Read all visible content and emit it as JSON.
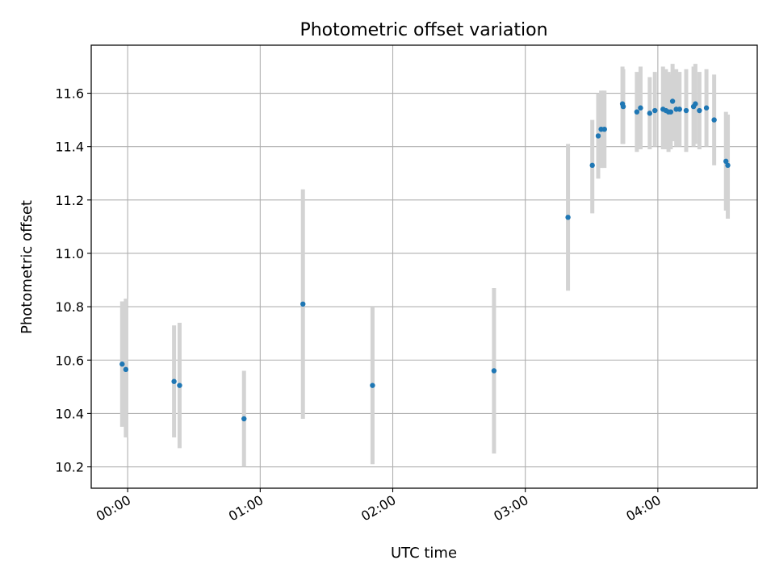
{
  "chart_data": {
    "type": "scatter",
    "title": "Photometric offset variation",
    "xlabel": "UTC time",
    "ylabel": "Photometric offset",
    "x_unit": "UTC time (HH:MM)",
    "xlim": [
      "23:43:30",
      "04:45:00"
    ],
    "ylim": [
      10.12,
      11.78
    ],
    "grid": true,
    "x_ticks": [
      "00:00",
      "01:00",
      "02:00",
      "03:00",
      "04:00"
    ],
    "y_ticks": [
      "10.2",
      "10.4",
      "10.6",
      "10.8",
      "11.0",
      "11.2",
      "11.4",
      "11.6"
    ],
    "colors": {
      "marker": "#1f77b4",
      "errorbar": "#d3d3d3",
      "grid": "#b0b0b0"
    },
    "points": [
      {
        "x": "23:57:30",
        "y": 10.585,
        "y_low": 10.35,
        "y_high": 10.82
      },
      {
        "x": "23:59:10",
        "y": 10.565,
        "y_low": 10.31,
        "y_high": 10.83
      },
      {
        "x": "00:21:00",
        "y": 10.52,
        "y_low": 10.31,
        "y_high": 10.73
      },
      {
        "x": "00:23:30",
        "y": 10.505,
        "y_low": 10.27,
        "y_high": 10.74
      },
      {
        "x": "00:52:40",
        "y": 10.38,
        "y_low": 10.2,
        "y_high": 10.56
      },
      {
        "x": "01:19:20",
        "y": 10.81,
        "y_low": 10.38,
        "y_high": 11.24
      },
      {
        "x": "01:50:50",
        "y": 10.505,
        "y_low": 10.21,
        "y_high": 10.8
      },
      {
        "x": "02:45:50",
        "y": 10.56,
        "y_low": 10.25,
        "y_high": 10.87
      },
      {
        "x": "03:19:20",
        "y": 11.135,
        "y_low": 10.86,
        "y_high": 11.41
      },
      {
        "x": "03:30:20",
        "y": 11.33,
        "y_low": 11.15,
        "y_high": 11.5
      },
      {
        "x": "03:33:00",
        "y": 11.44,
        "y_low": 11.28,
        "y_high": 11.6
      },
      {
        "x": "03:34:20",
        "y": 11.465,
        "y_low": 11.32,
        "y_high": 11.61
      },
      {
        "x": "03:35:50",
        "y": 11.465,
        "y_low": 11.32,
        "y_high": 11.61
      },
      {
        "x": "03:44:00",
        "y": 11.56,
        "y_low": 11.41,
        "y_high": 11.7
      },
      {
        "x": "03:44:20",
        "y": 11.55,
        "y_low": 11.41,
        "y_high": 11.69
      },
      {
        "x": "03:50:30",
        "y": 11.53,
        "y_low": 11.38,
        "y_high": 11.68
      },
      {
        "x": "03:52:10",
        "y": 11.545,
        "y_low": 11.39,
        "y_high": 11.7
      },
      {
        "x": "03:56:20",
        "y": 11.525,
        "y_low": 11.39,
        "y_high": 11.66
      },
      {
        "x": "03:58:40",
        "y": 11.535,
        "y_low": 11.4,
        "y_high": 11.68
      },
      {
        "x": "04:02:20",
        "y": 11.54,
        "y_low": 11.39,
        "y_high": 11.7
      },
      {
        "x": "04:03:40",
        "y": 11.535,
        "y_low": 11.39,
        "y_high": 11.69
      },
      {
        "x": "04:04:50",
        "y": 11.53,
        "y_low": 11.38,
        "y_high": 11.68
      },
      {
        "x": "04:05:50",
        "y": 11.53,
        "y_low": 11.39,
        "y_high": 11.67
      },
      {
        "x": "04:06:40",
        "y": 11.57,
        "y_low": 11.42,
        "y_high": 11.71
      },
      {
        "x": "04:08:20",
        "y": 11.54,
        "y_low": 11.4,
        "y_high": 11.69
      },
      {
        "x": "04:09:50",
        "y": 11.54,
        "y_low": 11.4,
        "y_high": 11.68
      },
      {
        "x": "04:12:50",
        "y": 11.535,
        "y_low": 11.38,
        "y_high": 11.69
      },
      {
        "x": "04:16:10",
        "y": 11.55,
        "y_low": 11.4,
        "y_high": 11.7
      },
      {
        "x": "04:17:00",
        "y": 11.56,
        "y_low": 11.41,
        "y_high": 11.71
      },
      {
        "x": "04:18:50",
        "y": 11.535,
        "y_low": 11.39,
        "y_high": 11.68
      },
      {
        "x": "04:22:00",
        "y": 11.545,
        "y_low": 11.4,
        "y_high": 11.69
      },
      {
        "x": "04:25:30",
        "y": 11.5,
        "y_low": 11.33,
        "y_high": 11.67
      },
      {
        "x": "04:30:50",
        "y": 11.345,
        "y_low": 11.16,
        "y_high": 11.53
      },
      {
        "x": "04:31:40",
        "y": 11.33,
        "y_low": 11.13,
        "y_high": 11.52
      }
    ]
  }
}
